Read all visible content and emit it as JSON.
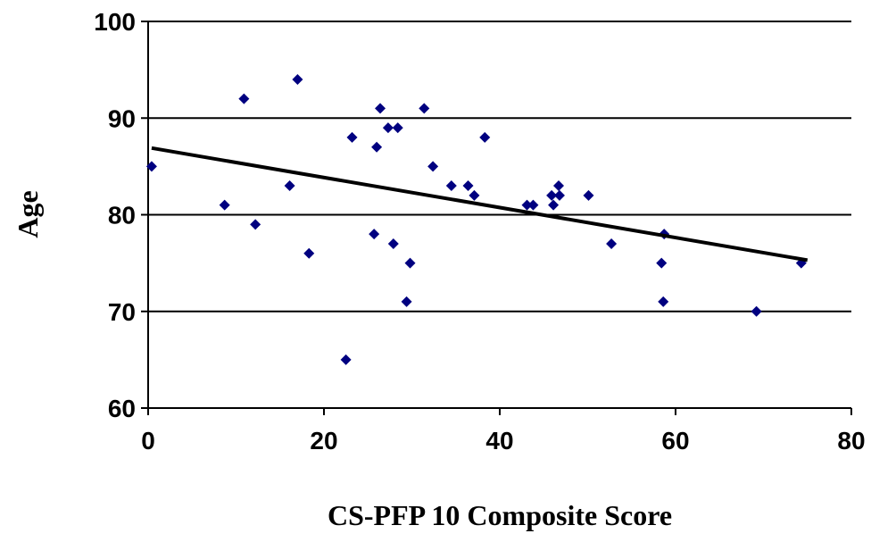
{
  "chart_data": {
    "type": "scatter",
    "x_label": "CS-PFP 10 Composite Score",
    "y_label": "Age",
    "xlim": [
      0,
      80
    ],
    "ylim": [
      60,
      100
    ],
    "xticks": [
      0,
      20,
      40,
      60,
      80
    ],
    "yticks": [
      60,
      70,
      80,
      90,
      100
    ],
    "grid": true,
    "series": [
      {
        "color": "#000080",
        "x": [
          0.4,
          8.7,
          10.9,
          12.2,
          16.1,
          17.0,
          18.3,
          22.5,
          23.2,
          25.7,
          26.0,
          26.4,
          27.3,
          27.9,
          28.4,
          29.4,
          29.8,
          31.4,
          32.4,
          34.5,
          36.4,
          37.1,
          38.3,
          43.1,
          43.8,
          45.9,
          46.1,
          46.7,
          46.8,
          50.1,
          52.7,
          58.4,
          58.6,
          58.7,
          69.2,
          74.3
        ],
        "values": [
          85,
          81,
          92,
          79,
          83,
          94,
          76,
          65,
          88,
          78,
          87,
          91,
          89,
          77,
          89,
          71,
          75,
          91,
          85,
          83,
          83,
          82,
          88,
          81,
          81,
          82,
          81,
          83,
          82,
          82,
          77,
          75,
          71,
          78,
          70,
          75
        ]
      }
    ],
    "trendline": {
      "color": "#000000",
      "x": [
        0.4,
        75.0
      ],
      "values": [
        86.9,
        75.3
      ]
    }
  }
}
